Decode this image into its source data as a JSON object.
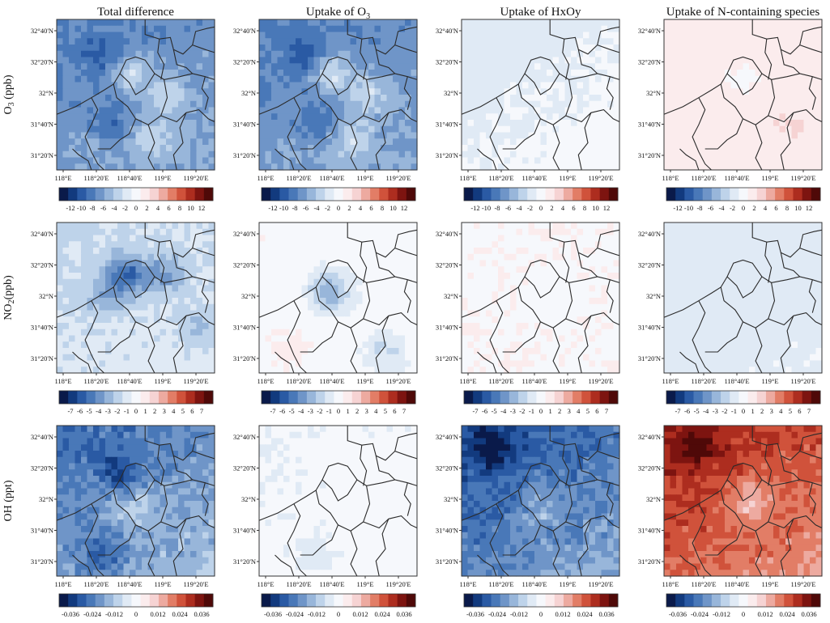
{
  "columns": [
    {
      "title": "Total difference"
    },
    {
      "title": "Uptake of O",
      "sub": "3"
    },
    {
      "title": "Uptake of HxOy"
    },
    {
      "title": "Uptake of N-containing species"
    }
  ],
  "rows": [
    {
      "label": "O",
      "sub": "3",
      "unit": " (ppb)",
      "colorbar": {
        "ticks": [
          "-12",
          "-10",
          "-8",
          "-6",
          "-4",
          "-2",
          "0",
          "2",
          "4",
          "6",
          "8",
          "10",
          "12"
        ]
      },
      "fields": [
        {
          "base": -6,
          "grad": 1.5,
          "noise": 1.2,
          "blobs": [
            [
              0.3,
              0.25,
              -3
            ],
            [
              0.45,
              0.35,
              4
            ],
            [
              0.7,
              0.5,
              3
            ],
            [
              0.35,
              0.7,
              -2
            ],
            [
              0.6,
              0.8,
              3
            ],
            [
              0.2,
              0.85,
              1
            ]
          ]
        },
        {
          "base": -6,
          "grad": 1.5,
          "noise": 1.2,
          "blobs": [
            [
              0.3,
              0.25,
              -3
            ],
            [
              0.45,
              0.35,
              4
            ],
            [
              0.7,
              0.5,
              3
            ],
            [
              0.35,
              0.7,
              -2
            ],
            [
              0.6,
              0.8,
              3
            ],
            [
              0.2,
              0.85,
              1
            ]
          ]
        },
        {
          "base": -0.8,
          "grad": 0.6,
          "noise": 0.3,
          "blobs": [
            [
              0.2,
              0.2,
              -0.8
            ]
          ]
        },
        {
          "base": 1.5,
          "grad": 0.4,
          "noise": 0.5,
          "blobs": [
            [
              0.5,
              0.4,
              -1.0
            ],
            [
              0.8,
              0.7,
              0.8
            ]
          ]
        }
      ]
    },
    {
      "label": "NO",
      "sub": "2",
      "unit": "(ppb)",
      "colorbar": {
        "ticks": [
          "-7",
          "-6",
          "-5",
          "-4",
          "-3",
          "-2",
          "-1",
          "0",
          "1",
          "2",
          "3",
          "4",
          "5",
          "6",
          "7"
        ]
      },
      "fields": [
        {
          "base": -1.2,
          "grad": 0.6,
          "noise": 0.6,
          "blobs": [
            [
              0.45,
              0.35,
              -3.5
            ],
            [
              0.7,
              0.35,
              -2
            ],
            [
              0.3,
              0.5,
              -1.5
            ],
            [
              0.9,
              0.7,
              -1.5
            ]
          ]
        },
        {
          "base": 0.1,
          "grad": -0.2,
          "noise": 0.4,
          "blobs": [
            [
              0.45,
              0.45,
              -3
            ],
            [
              0.8,
              0.85,
              -1.5
            ],
            [
              0.2,
              0.85,
              0.8
            ]
          ]
        },
        {
          "base": 0.4,
          "grad": 0.0,
          "noise": 0.15,
          "blobs": [
            [
              0.6,
              0.5,
              -0.3
            ]
          ]
        },
        {
          "base": -0.6,
          "grad": 0.2,
          "noise": 0.15,
          "blobs": [
            [
              0.7,
              0.6,
              -0.3
            ]
          ]
        }
      ]
    },
    {
      "label": "OH",
      "sub": "",
      "unit": " (ppt)",
      "colorbar": {
        "ticks": [
          "-0.036",
          "-0.024",
          "-0.012",
          "0",
          "0.012",
          "0.024",
          "0.036"
        ]
      },
      "fields": [
        {
          "base": -0.018,
          "grad": 0.01,
          "noise": 0.006,
          "blobs": [
            [
              0.4,
              0.3,
              -0.01
            ],
            [
              0.5,
              0.55,
              0.008
            ],
            [
              0.3,
              0.85,
              -0.01
            ]
          ]
        },
        {
          "base": -0.001,
          "grad": 0.002,
          "noise": 0.002,
          "blobs": [
            [
              0.5,
              0.2,
              0.002
            ],
            [
              0.35,
              0.85,
              -0.004
            ]
          ]
        },
        {
          "base": -0.022,
          "grad": 0.012,
          "noise": 0.006,
          "blobs": [
            [
              0.2,
              0.15,
              -0.01
            ],
            [
              0.5,
              0.55,
              0.008
            ]
          ]
        },
        {
          "base": 0.022,
          "grad": -0.01,
          "noise": 0.005,
          "blobs": [
            [
              0.2,
              0.15,
              0.01
            ],
            [
              0.55,
              0.5,
              -0.01
            ]
          ]
        }
      ]
    }
  ],
  "lat_labels": [
    "32°40'N",
    "32°20'N",
    "32°N",
    "31°40'N",
    "31°20'N"
  ],
  "lon_labels": [
    "118°E",
    "118°20'E",
    "118°40'E",
    "119°E",
    "119°20'E"
  ]
}
